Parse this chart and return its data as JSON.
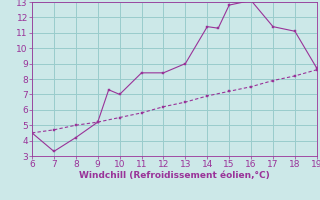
{
  "xlabel": "Windchill (Refroidissement éolien,°C)",
  "xlim": [
    6,
    19
  ],
  "ylim": [
    3,
    13
  ],
  "xticks": [
    6,
    7,
    8,
    9,
    10,
    11,
    12,
    13,
    14,
    15,
    16,
    17,
    18,
    19
  ],
  "yticks": [
    3,
    4,
    5,
    6,
    7,
    8,
    9,
    10,
    11,
    12,
    13
  ],
  "curve1_x": [
    6,
    7,
    8,
    9,
    9.5,
    10,
    11,
    12,
    13,
    14,
    14.5,
    15,
    16,
    17,
    18,
    19
  ],
  "curve1_y": [
    4.5,
    3.3,
    4.2,
    5.2,
    7.3,
    7.0,
    8.4,
    8.4,
    9.0,
    11.4,
    11.3,
    12.8,
    13.1,
    11.4,
    11.1,
    8.7
  ],
  "curve2_x": [
    6,
    7,
    8,
    9,
    10,
    11,
    12,
    13,
    14,
    15,
    16,
    17,
    18,
    19
  ],
  "curve2_y": [
    4.5,
    4.7,
    5.0,
    5.2,
    5.5,
    5.8,
    6.2,
    6.5,
    6.9,
    7.2,
    7.5,
    7.9,
    8.2,
    8.6
  ],
  "line_color": "#993399",
  "bg_color": "#cce8e8",
  "grid_color": "#99cccc",
  "label_color": "#993399",
  "font_size": 6.5
}
